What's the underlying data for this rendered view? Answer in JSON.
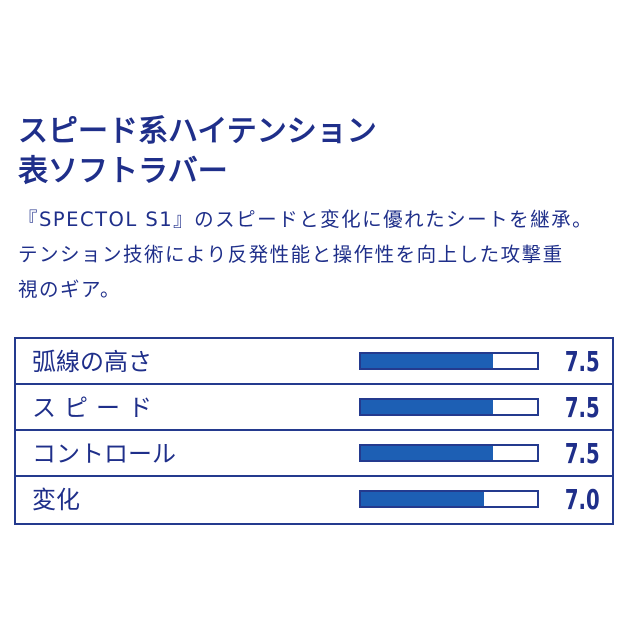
{
  "heading": {
    "line1": "スピード系ハイテンション",
    "line2": "表ソフトラバー"
  },
  "description": {
    "line1": "『SPECTOL S1』のスピードと変化に優れたシートを継承。",
    "line2": "テンション技術により反発性能と操作性を向上した攻撃重",
    "line3": "視のギア。"
  },
  "colors": {
    "text": "#1f2f8a",
    "border": "#243a8e",
    "bar": "#1d5fb4"
  },
  "ratings": [
    {
      "label": "弧線の高さ",
      "score": "7.5",
      "fill": 0.75
    },
    {
      "label": "スピード",
      "score": "7.5",
      "fill": 0.75
    },
    {
      "label": "コントロール",
      "score": "7.5",
      "fill": 0.75
    },
    {
      "label": "変化",
      "score": "7.0",
      "fill": 0.7
    }
  ]
}
